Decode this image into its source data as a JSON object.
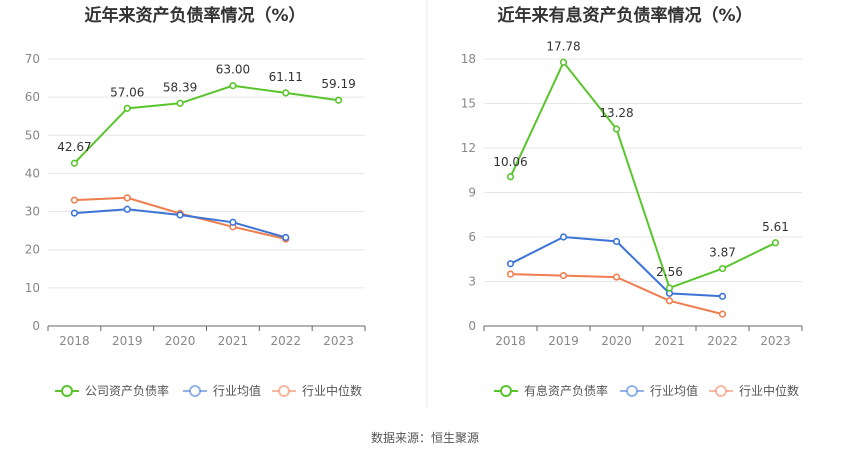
{
  "source": "数据来源：恒生聚源",
  "colors": {
    "green": "#5ac42d",
    "blue": "#3b74d6",
    "orange": "#ef7d4e",
    "grid": "#e6e6e6",
    "axis": "#666666",
    "divider": "#e8e8e8"
  },
  "chart_data": [
    {
      "type": "line",
      "title": "近年来资产负债率情况（%）",
      "categories": [
        "2018",
        "2019",
        "2020",
        "2021",
        "2022",
        "2023"
      ],
      "ylim": [
        0,
        70
      ],
      "yticks": [
        0,
        10,
        20,
        30,
        40,
        50,
        60,
        70
      ],
      "grid": true,
      "legend_position": "bottom",
      "series": [
        {
          "name": "公司资产负债率",
          "color": "#5ac42d",
          "values": [
            42.67,
            57.06,
            58.39,
            63.0,
            61.11,
            59.19
          ],
          "labels": [
            "42.67",
            "57.06",
            "58.39",
            "63.00",
            "61.11",
            "59.19"
          ]
        },
        {
          "name": "行业均值",
          "color": "#3b74d6",
          "values": [
            29.6,
            30.6,
            29.1,
            27.2,
            23.2,
            null
          ]
        },
        {
          "name": "行业中位数",
          "color": "#ef7d4e",
          "values": [
            33.0,
            33.6,
            29.5,
            26.0,
            22.8,
            null
          ]
        }
      ]
    },
    {
      "type": "line",
      "title": "近年来有息资产负债率情况（%）",
      "categories": [
        "2018",
        "2019",
        "2020",
        "2021",
        "2022",
        "2023"
      ],
      "ylim": [
        0,
        18
      ],
      "yticks": [
        0,
        3,
        6,
        9,
        12,
        15,
        18
      ],
      "grid": true,
      "legend_position": "bottom",
      "series": [
        {
          "name": "有息资产负债率",
          "color": "#5ac42d",
          "values": [
            10.06,
            17.78,
            13.28,
            2.56,
            3.87,
            5.61
          ],
          "labels": [
            "10.06",
            "17.78",
            "13.28",
            "2.56",
            "3.87",
            "5.61"
          ]
        },
        {
          "name": "行业均值",
          "color": "#3b74d6",
          "values": [
            4.2,
            6.0,
            5.7,
            2.2,
            2.0,
            null
          ]
        },
        {
          "name": "行业中位数",
          "color": "#ef7d4e",
          "values": [
            3.5,
            3.4,
            3.3,
            1.7,
            0.8,
            null
          ]
        }
      ]
    }
  ]
}
